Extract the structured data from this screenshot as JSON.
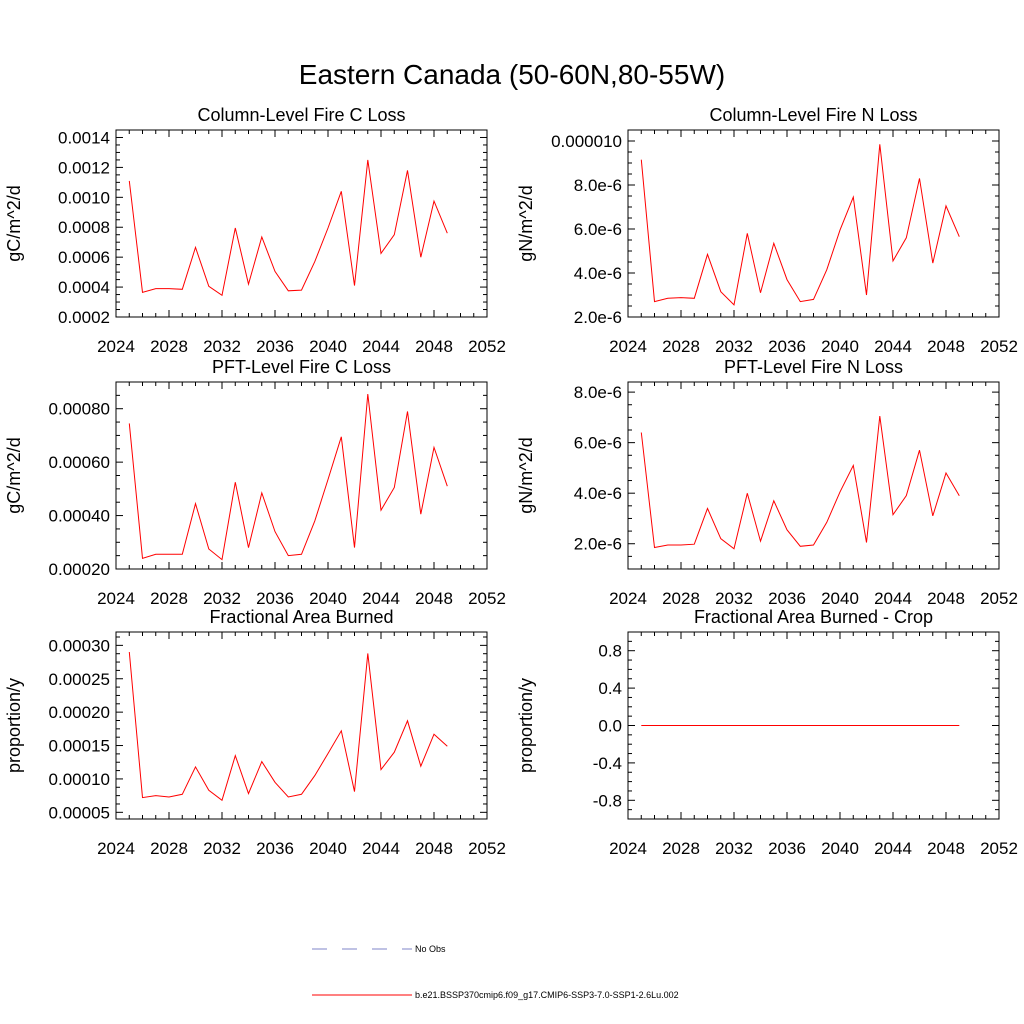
{
  "figure": {
    "title": "Eastern Canada (50-60N,80-55W)",
    "legend": [
      {
        "label": "No Obs",
        "color": "#7f86c8",
        "style": "dashed"
      },
      {
        "label": "b.e21.BSSP370cmip6.f09_g17.CMIP6-SSP3-7.0-SSP1-2.6Lu.002",
        "color": "#ff0000",
        "style": "solid"
      }
    ]
  },
  "chart_data": [
    {
      "type": "line",
      "title": "Column-Level Fire C Loss",
      "ylabel": "gC/m^2/d",
      "xlim": [
        2024,
        2052
      ],
      "ylim": [
        0.0002,
        0.00145
      ],
      "xticks": [
        2024,
        2028,
        2032,
        2036,
        2040,
        2044,
        2048,
        2052
      ],
      "yticks": [
        0.0002,
        0.0004,
        0.0006,
        0.0008,
        0.001,
        0.0012,
        0.0014
      ],
      "ytick_labels": [
        "0.0002",
        "0.0004",
        "0.0006",
        "0.0008",
        "0.0010",
        "0.0012",
        "0.0014"
      ],
      "x": [
        2025,
        2026,
        2027,
        2028,
        2029,
        2030,
        2031,
        2032,
        2033,
        2034,
        2035,
        2036,
        2037,
        2038,
        2039,
        2040,
        2041,
        2042,
        2043,
        2044,
        2045,
        2046,
        2047,
        2048,
        2049
      ],
      "series": [
        {
          "color": "#ff0000",
          "values": [
            0.00111,
            0.000365,
            0.00039,
            0.00039,
            0.000385,
            0.000665,
            0.000405,
            0.000345,
            0.000795,
            0.00042,
            0.000735,
            0.000505,
            0.000375,
            0.00038,
            0.00057,
            0.000795,
            0.00104,
            0.00041,
            0.00125,
            0.000625,
            0.00075,
            0.00118,
            0.0006,
            0.000975,
            0.00076
          ]
        }
      ]
    },
    {
      "type": "line",
      "title": "Column-Level Fire N Loss",
      "ylabel": "gN/m^2/d",
      "xlim": [
        2024,
        2052
      ],
      "ylim": [
        2e-06,
        1.05e-05
      ],
      "xticks": [
        2024,
        2028,
        2032,
        2036,
        2040,
        2044,
        2048,
        2052
      ],
      "yticks": [
        2e-06,
        4e-06,
        6e-06,
        8e-06,
        1e-05
      ],
      "ytick_labels": [
        "2.0e-6",
        "4.0e-6",
        "6.0e-6",
        "8.0e-6",
        "0.000010"
      ],
      "x": [
        2025,
        2026,
        2027,
        2028,
        2029,
        2030,
        2031,
        2032,
        2033,
        2034,
        2035,
        2036,
        2037,
        2038,
        2039,
        2040,
        2041,
        2042,
        2043,
        2044,
        2045,
        2046,
        2047,
        2048,
        2049
      ],
      "series": [
        {
          "color": "#ff0000",
          "values": [
            9.15e-06,
            2.7e-06,
            2.85e-06,
            2.88e-06,
            2.85e-06,
            4.85e-06,
            3.15e-06,
            2.55e-06,
            5.8e-06,
            3.1e-06,
            5.35e-06,
            3.7e-06,
            2.7e-06,
            2.8e-06,
            4.15e-06,
            5.95e-06,
            7.45e-06,
            3e-06,
            9.85e-06,
            4.55e-06,
            5.6e-06,
            8.3e-06,
            4.45e-06,
            7.05e-06,
            5.65e-06
          ]
        }
      ]
    },
    {
      "type": "line",
      "title": "PFT-Level Fire C Loss",
      "ylabel": "gC/m^2/d",
      "xlim": [
        2024,
        2052
      ],
      "ylim": [
        0.0002,
        0.0009
      ],
      "xticks": [
        2024,
        2028,
        2032,
        2036,
        2040,
        2044,
        2048,
        2052
      ],
      "yticks": [
        0.0002,
        0.0004,
        0.0006,
        0.0008
      ],
      "ytick_labels": [
        "0.00020",
        "0.00040",
        "0.00060",
        "0.00080"
      ],
      "x": [
        2025,
        2026,
        2027,
        2028,
        2029,
        2030,
        2031,
        2032,
        2033,
        2034,
        2035,
        2036,
        2037,
        2038,
        2039,
        2040,
        2041,
        2042,
        2043,
        2044,
        2045,
        2046,
        2047,
        2048,
        2049
      ],
      "series": [
        {
          "color": "#ff0000",
          "values": [
            0.000745,
            0.00024,
            0.000255,
            0.000255,
            0.000255,
            0.000445,
            0.000275,
            0.000235,
            0.000525,
            0.00028,
            0.000485,
            0.00034,
            0.00025,
            0.000255,
            0.00038,
            0.000535,
            0.000695,
            0.00028,
            0.000855,
            0.00042,
            0.000505,
            0.00079,
            0.000405,
            0.000655,
            0.00051
          ]
        }
      ]
    },
    {
      "type": "line",
      "title": "PFT-Level Fire N Loss",
      "ylabel": "gN/m^2/d",
      "xlim": [
        2024,
        2052
      ],
      "ylim": [
        1e-06,
        8.4e-06
      ],
      "xticks": [
        2024,
        2028,
        2032,
        2036,
        2040,
        2044,
        2048,
        2052
      ],
      "yticks": [
        2e-06,
        4e-06,
        6e-06,
        8e-06
      ],
      "ytick_labels": [
        "2.0e-6",
        "4.0e-6",
        "6.0e-6",
        "8.0e-6"
      ],
      "x": [
        2025,
        2026,
        2027,
        2028,
        2029,
        2030,
        2031,
        2032,
        2033,
        2034,
        2035,
        2036,
        2037,
        2038,
        2039,
        2040,
        2041,
        2042,
        2043,
        2044,
        2045,
        2046,
        2047,
        2048,
        2049
      ],
      "series": [
        {
          "color": "#ff0000",
          "values": [
            6.4e-06,
            1.85e-06,
            1.95e-06,
            1.95e-06,
            1.98e-06,
            3.4e-06,
            2.2e-06,
            1.8e-06,
            4e-06,
            2.1e-06,
            3.7e-06,
            2.55e-06,
            1.9e-06,
            1.95e-06,
            2.85e-06,
            4.05e-06,
            5.1e-06,
            2.05e-06,
            7.05e-06,
            3.15e-06,
            3.9e-06,
            5.7e-06,
            3.1e-06,
            4.8e-06,
            3.9e-06
          ]
        }
      ]
    },
    {
      "type": "line",
      "title": "Fractional Area Burned",
      "ylabel": "proportion/y",
      "xlim": [
        2024,
        2052
      ],
      "ylim": [
        4e-05,
        0.00032
      ],
      "xticks": [
        2024,
        2028,
        2032,
        2036,
        2040,
        2044,
        2048,
        2052
      ],
      "yticks": [
        5e-05,
        0.0001,
        0.00015,
        0.0002,
        0.00025,
        0.0003
      ],
      "ytick_labels": [
        "0.00005",
        "0.00010",
        "0.00015",
        "0.00020",
        "0.00025",
        "0.00030"
      ],
      "x": [
        2025,
        2026,
        2027,
        2028,
        2029,
        2030,
        2031,
        2032,
        2033,
        2034,
        2035,
        2036,
        2037,
        2038,
        2039,
        2040,
        2041,
        2042,
        2043,
        2044,
        2045,
        2046,
        2047,
        2048,
        2049
      ],
      "series": [
        {
          "color": "#ff0000",
          "values": [
            0.00029,
            7.2e-05,
            7.5e-05,
            7.3e-05,
            7.7e-05,
            0.000118,
            8.3e-05,
            6.8e-05,
            0.000135,
            7.8e-05,
            0.000126,
            9.5e-05,
            7.3e-05,
            7.7e-05,
            0.000105,
            0.000138,
            0.000172,
            8.1e-05,
            0.000288,
            0.000114,
            0.00014,
            0.000187,
            0.000119,
            0.000167,
            0.000149
          ]
        }
      ]
    },
    {
      "type": "line",
      "title": "Fractional Area Burned - Crop",
      "ylabel": "proportion/y",
      "xlim": [
        2024,
        2052
      ],
      "ylim": [
        -1.0,
        1.0
      ],
      "xticks": [
        2024,
        2028,
        2032,
        2036,
        2040,
        2044,
        2048,
        2052
      ],
      "yticks": [
        -0.8,
        -0.4,
        0.0,
        0.4,
        0.8
      ],
      "ytick_labels": [
        "-0.8",
        "-0.4",
        "0.0",
        "0.4",
        "0.8"
      ],
      "x": [
        2025,
        2026,
        2027,
        2028,
        2029,
        2030,
        2031,
        2032,
        2033,
        2034,
        2035,
        2036,
        2037,
        2038,
        2039,
        2040,
        2041,
        2042,
        2043,
        2044,
        2045,
        2046,
        2047,
        2048,
        2049
      ],
      "series": [
        {
          "color": "#ff0000",
          "values": [
            0,
            0,
            0,
            0,
            0,
            0,
            0,
            0,
            0,
            0,
            0,
            0,
            0,
            0,
            0,
            0,
            0,
            0,
            0,
            0,
            0,
            0,
            0,
            0,
            0
          ]
        }
      ]
    }
  ]
}
